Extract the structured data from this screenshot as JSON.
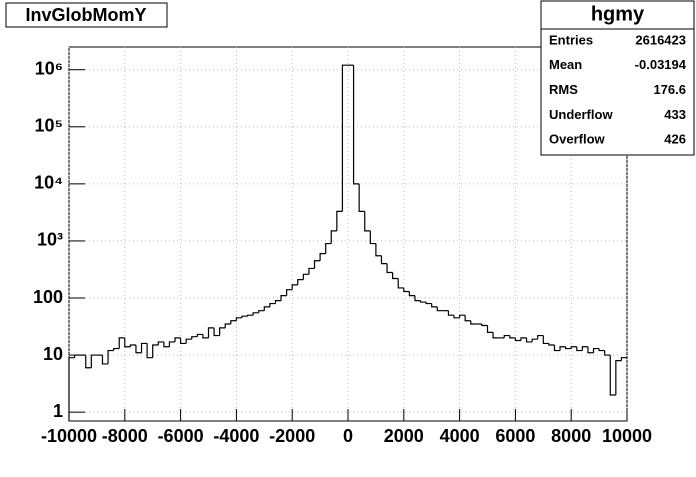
{
  "chart_data": {
    "type": "histogram",
    "title": "InvGlobMomY",
    "log_y": true,
    "grid": true,
    "color": "#000000",
    "bins": [
      -10000,
      -9800,
      -9600,
      -9400,
      -9200,
      -9000,
      -8800,
      -8600,
      -8400,
      -8200,
      -8000,
      -7800,
      -7600,
      -7400,
      -7200,
      -7000,
      -6800,
      -6600,
      -6400,
      -6200,
      -6000,
      -5800,
      -5600,
      -5400,
      -5200,
      -5000,
      -4800,
      -4600,
      -4400,
      -4200,
      -4000,
      -3800,
      -3600,
      -3400,
      -3200,
      -3000,
      -2800,
      -2600,
      -2400,
      -2200,
      -2000,
      -1800,
      -1600,
      -1400,
      -1200,
      -1000,
      -800,
      -600,
      -400,
      -200,
      0,
      200,
      400,
      600,
      800,
      1000,
      1200,
      1400,
      1600,
      1800,
      2000,
      2200,
      2400,
      2600,
      2800,
      3000,
      3200,
      3400,
      3600,
      3800,
      4000,
      4200,
      4400,
      4600,
      4800,
      5000,
      5200,
      5400,
      5600,
      5800,
      6000,
      6200,
      6400,
      6600,
      6800,
      7000,
      7200,
      7400,
      7600,
      7800,
      8000,
      8200,
      8400,
      8600,
      8800,
      9000,
      9200,
      9400,
      9600,
      9800,
      10000
    ],
    "values": [
      9,
      10,
      10,
      6,
      10,
      10,
      7,
      12,
      13,
      20,
      14,
      15,
      11,
      16,
      9,
      15,
      17,
      14,
      17,
      20,
      16,
      19,
      21,
      23,
      20,
      30,
      22,
      30,
      35,
      40,
      45,
      48,
      50,
      55,
      60,
      70,
      80,
      90,
      110,
      140,
      170,
      210,
      260,
      330,
      450,
      600,
      900,
      1500,
      3300,
      1200000,
      1200000,
      10000,
      3300,
      1500,
      900,
      550,
      400,
      280,
      220,
      150,
      130,
      110,
      90,
      85,
      80,
      70,
      60,
      60,
      50,
      45,
      50,
      40,
      35,
      35,
      33,
      25,
      20,
      20,
      22,
      20,
      18,
      20,
      17,
      19,
      22,
      16,
      15,
      12,
      14,
      13,
      14,
      12,
      14,
      11,
      13,
      12,
      10,
      2,
      8,
      9
    ],
    "xlim": [
      -10000,
      10000
    ],
    "xticks": [
      -10000,
      -8000,
      -6000,
      -4000,
      -2000,
      0,
      2000,
      4000,
      6000,
      8000,
      10000
    ],
    "ylim": [
      0.7,
      2500000
    ],
    "yticks": [
      1,
      10,
      100,
      {
        "value": 1000,
        "label": "10³"
      },
      {
        "value": 10000,
        "label": "10⁴"
      },
      {
        "value": 100000,
        "label": "10⁵"
      },
      {
        "value": 1000000,
        "label": "10⁶"
      }
    ],
    "stats": {
      "title": "hgmy",
      "rows": [
        [
          "Entries",
          2616423
        ],
        [
          "Mean",
          -0.03194
        ],
        [
          "RMS",
          176.6
        ],
        [
          "Underflow",
          433
        ],
        [
          "Overflow",
          426
        ]
      ]
    }
  }
}
